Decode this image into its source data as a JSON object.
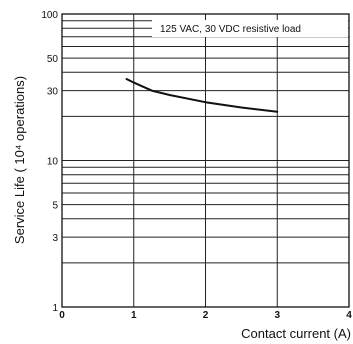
{
  "chart_data": {
    "type": "line",
    "ylabel": "Service Life ( 10⁴ operations)",
    "xlabel": "Contact current (A)",
    "annotation": "125 VAC, 30 VDC resistive load",
    "x_ticks": [
      "0",
      "1",
      "2",
      "3",
      "4"
    ],
    "y_ticks": [
      "1",
      "3",
      "5",
      "10",
      "30",
      "50",
      "100"
    ],
    "xlim": [
      0,
      4
    ],
    "ylim": [
      1,
      100
    ],
    "y_scale": "log",
    "grid": true,
    "series": [
      {
        "x": [
          0.9,
          1.0,
          1.25,
          1.5,
          2.0,
          2.5,
          3.0
        ],
        "y": [
          36,
          34,
          30,
          28,
          25,
          23,
          21.5
        ]
      }
    ],
    "line_color": "#111111"
  }
}
